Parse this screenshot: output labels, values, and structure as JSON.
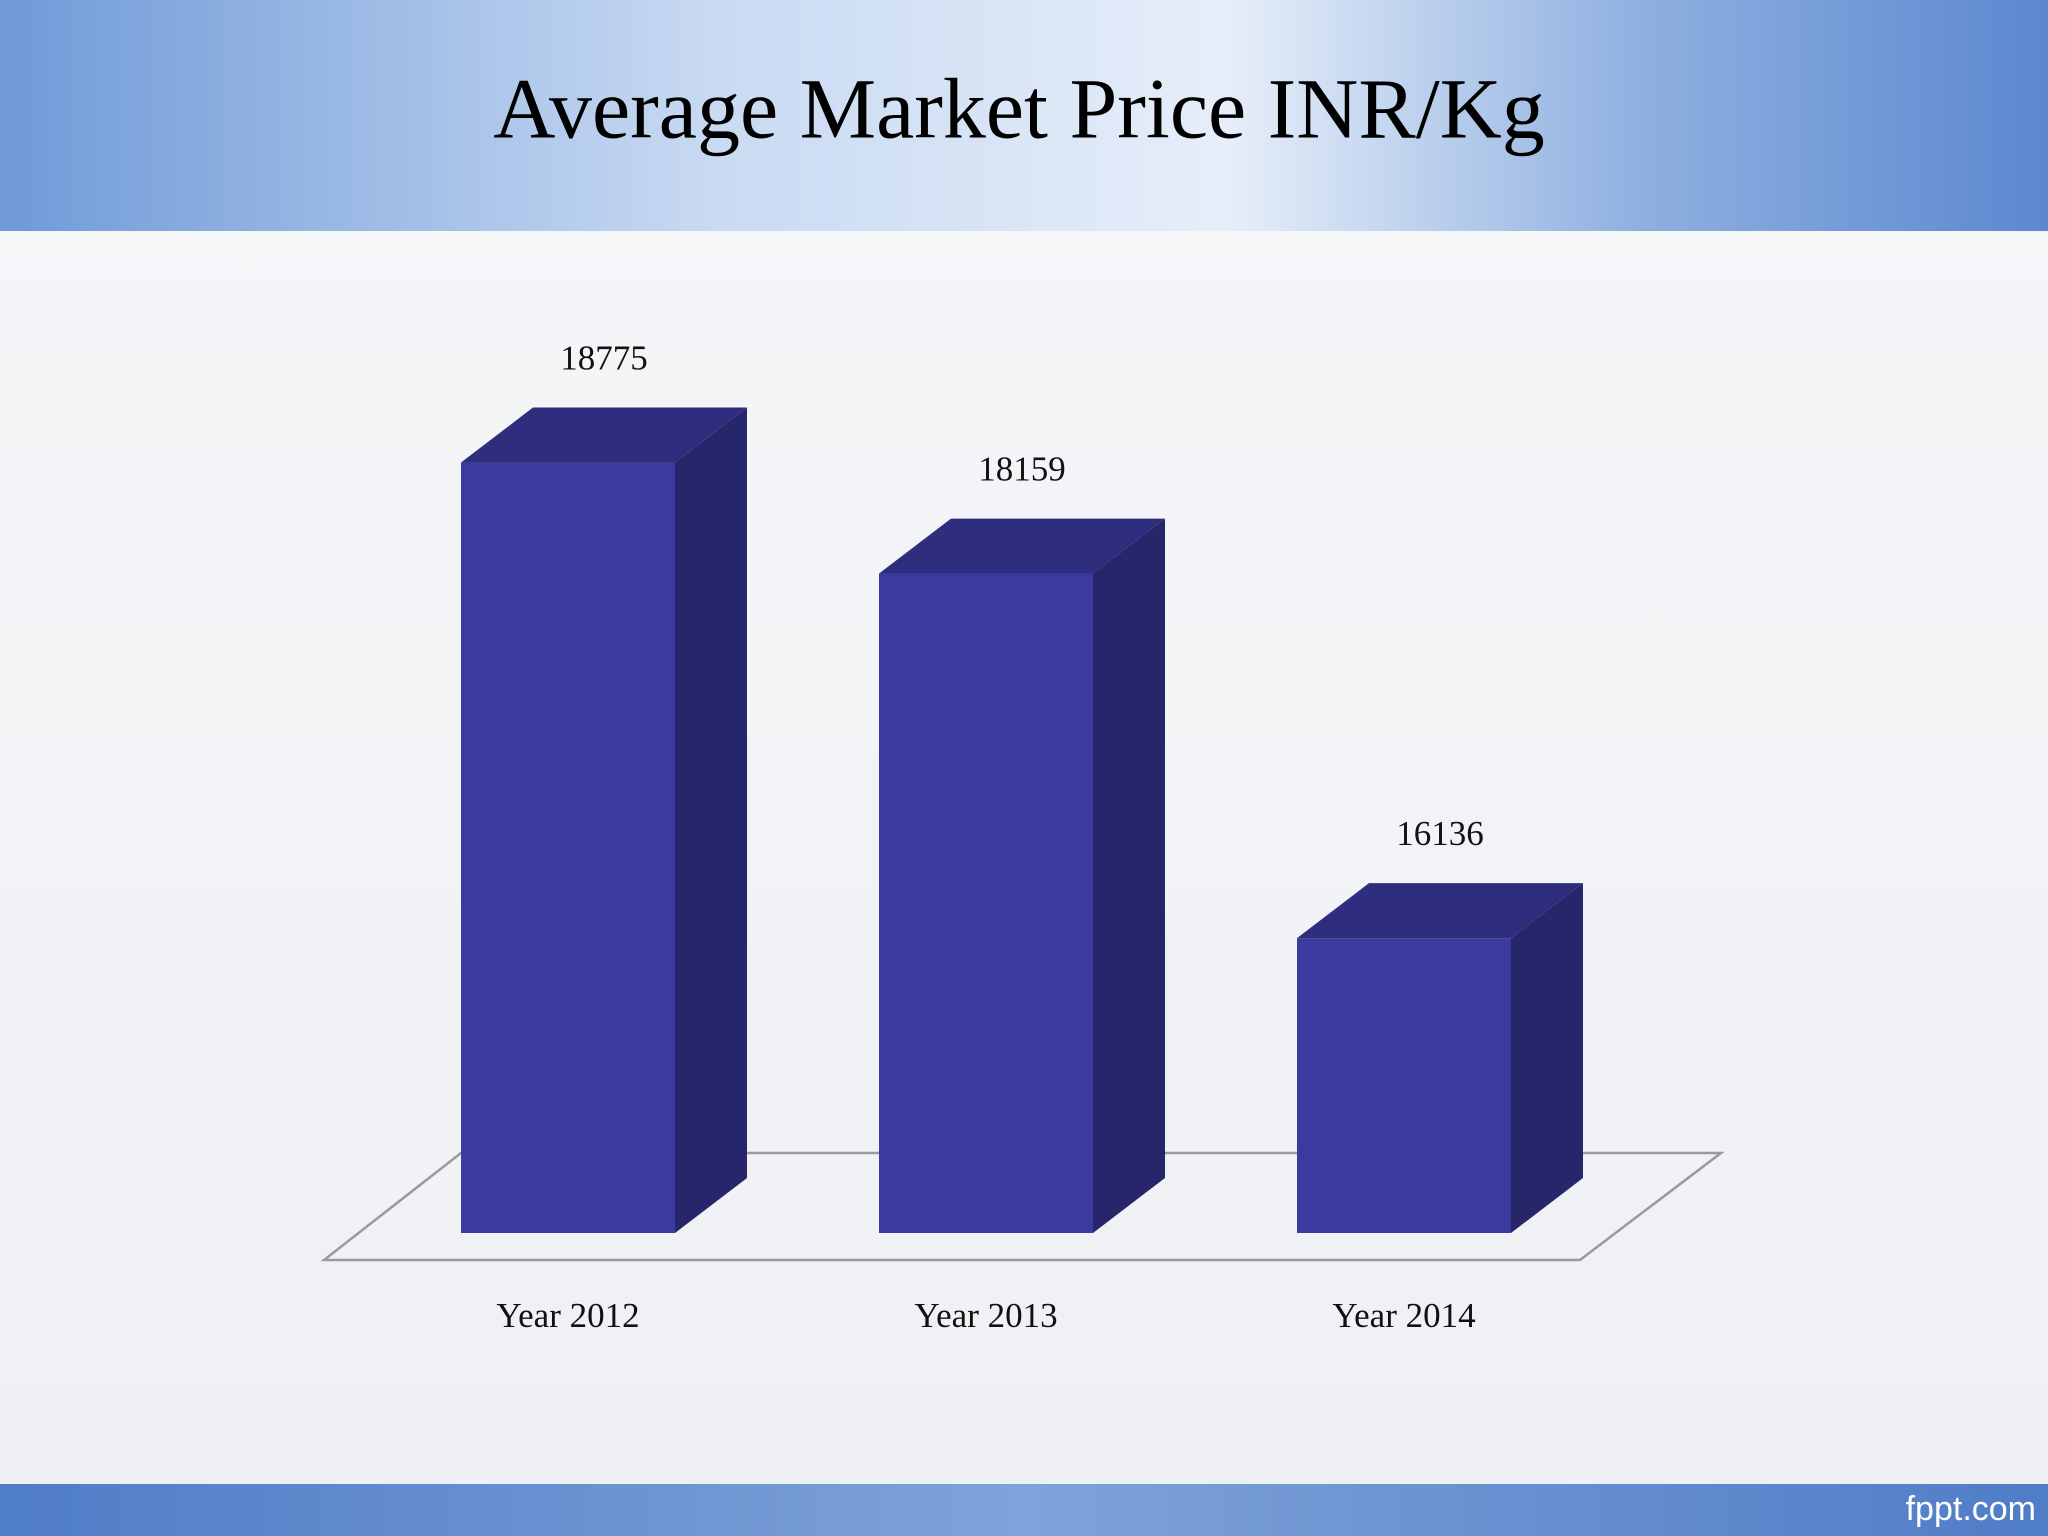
{
  "chart_data": {
    "type": "bar3d",
    "title": "Average Market Price INR/Kg",
    "categories": [
      "Year 2012",
      "Year 2013",
      "Year 2014"
    ],
    "values": [
      18775,
      18159,
      16136
    ],
    "color": "#3b3a9e",
    "ylim": [
      14500,
      19000
    ],
    "source": "fppt.com"
  }
}
